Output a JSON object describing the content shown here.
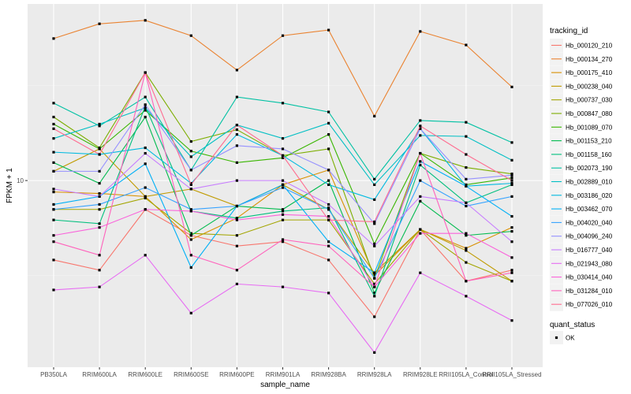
{
  "chart_data": {
    "type": "line",
    "xlabel": "sample_name",
    "ylabel": "FPKM + 1",
    "y_scale": "log10",
    "ylim": [
      2.56,
      36.3
    ],
    "y_ticks": [
      10
    ],
    "y_tick_labels": [
      "10"
    ],
    "grid": true,
    "legend_placement": "right",
    "categories": [
      "PB350LA",
      "RRIM600LA",
      "RRIM600LE",
      "RRIM600SE",
      "RRIM600PE",
      "RRIM901LA",
      "RRIM928BA",
      "RRIM928LA",
      "RRIM928LE",
      "RRII105LA_Control",
      "RRII105LA_Stressed"
    ],
    "legend_title": "tracking_id",
    "series": [
      {
        "name": "Hb_000120_210",
        "color": "#F8766D",
        "values": [
          5.6,
          5.2,
          8.1,
          6.7,
          6.2,
          6.4,
          5.6,
          3.7,
          7.0,
          4.8,
          5.2
        ]
      },
      {
        "name": "Hb_000134_270",
        "color": "#EA8331",
        "values": [
          28.2,
          31.4,
          32.2,
          28.8,
          22.4,
          28.8,
          30.0,
          16.0,
          29.7,
          26.9,
          19.8
        ]
      },
      {
        "name": "Hb_000175_410",
        "color": "#D89000",
        "values": [
          9.2,
          9.1,
          8.9,
          6.5,
          7.6,
          9.7,
          10.8,
          5.0,
          7.0,
          6.1,
          7.1
        ]
      },
      {
        "name": "Hb_000238_040",
        "color": "#C09B00",
        "values": [
          10.7,
          12.6,
          8.9,
          9.4,
          8.3,
          9.7,
          8.1,
          5.1,
          7.0,
          6.0,
          4.8
        ]
      },
      {
        "name": "Hb_000737_030",
        "color": "#A3A500",
        "values": [
          8.1,
          8.1,
          8.8,
          6.8,
          6.7,
          7.5,
          7.5,
          4.7,
          7.0,
          5.5,
          4.8
        ]
      },
      {
        "name": "Hb_000847_080",
        "color": "#7CAE00",
        "values": [
          15.9,
          12.7,
          22.0,
          13.3,
          14.5,
          12.0,
          12.6,
          4.9,
          12.2,
          11.0,
          10.5
        ]
      },
      {
        "name": "Hb_001089_070",
        "color": "#39B600",
        "values": [
          15.1,
          12.6,
          16.7,
          12.4,
          11.4,
          11.8,
          14.0,
          6.3,
          12.2,
          9.7,
          10.2
        ]
      },
      {
        "name": "Hb_001153_210",
        "color": "#00BB4E",
        "values": [
          11.4,
          9.8,
          15.9,
          6.7,
          8.3,
          8.1,
          10.0,
          4.4,
          8.6,
          6.7,
          6.9
        ]
      },
      {
        "name": "Hb_001158_160",
        "color": "#00BF7D",
        "values": [
          7.5,
          7.3,
          17.2,
          8.0,
          7.6,
          8.0,
          8.2,
          4.3,
          11.2,
          8.5,
          9.7
        ]
      },
      {
        "name": "Hb_002073_190",
        "color": "#00C1A3",
        "values": [
          17.6,
          14.9,
          18.4,
          10.8,
          18.4,
          17.6,
          16.5,
          10.1,
          15.5,
          15.3,
          13.2
        ]
      },
      {
        "name": "Hb_002889_010",
        "color": "#00BFC4",
        "values": [
          13.6,
          15.1,
          17.0,
          11.9,
          15.0,
          13.6,
          15.2,
          9.7,
          13.9,
          13.8,
          11.6
        ]
      },
      {
        "name": "Hb_003186_020",
        "color": "#00BAE0",
        "values": [
          12.3,
          12.1,
          12.7,
          9.8,
          14.0,
          12.0,
          9.7,
          8.7,
          14.6,
          9.6,
          9.8
        ]
      },
      {
        "name": "Hb_003462_070",
        "color": "#00B0F6",
        "values": [
          8.4,
          8.9,
          11.3,
          5.3,
          8.3,
          9.7,
          6.4,
          5.1,
          11.5,
          9.6,
          7.7
        ]
      },
      {
        "name": "Hb_004020_040",
        "color": "#35A2FF",
        "values": [
          8.1,
          8.4,
          9.5,
          8.1,
          8.3,
          9.5,
          8.1,
          4.9,
          10.0,
          8.3,
          8.9
        ]
      },
      {
        "name": "Hb_004096_240",
        "color": "#9590FF",
        "values": [
          10.7,
          10.7,
          17.4,
          10.8,
          12.9,
          12.6,
          10.8,
          7.3,
          14.6,
          10.1,
          10.4
        ]
      },
      {
        "name": "Hb_016777_040",
        "color": "#C77CFF",
        "values": [
          9.4,
          8.9,
          12.2,
          9.4,
          10.0,
          10.0,
          8.4,
          6.2,
          8.9,
          8.5,
          6.4
        ]
      },
      {
        "name": "Hb_021943_080",
        "color": "#E76BF3",
        "values": [
          4.5,
          4.6,
          5.8,
          3.8,
          4.7,
          4.6,
          4.4,
          2.85,
          5.1,
          4.3,
          3.6
        ]
      },
      {
        "name": "Hb_030414_040",
        "color": "#FA62DB",
        "values": [
          6.7,
          7.1,
          8.1,
          8.0,
          7.5,
          7.8,
          7.7,
          4.6,
          6.8,
          6.8,
          5.7
        ]
      },
      {
        "name": "Hb_031284_010",
        "color": "#FF62BC",
        "values": [
          6.4,
          5.8,
          22.0,
          5.8,
          5.2,
          6.5,
          6.2,
          4.6,
          12.2,
          4.8,
          5.1
        ]
      },
      {
        "name": "Hb_077026_010",
        "color": "#FF6C90",
        "values": [
          14.6,
          12.1,
          22.0,
          9.7,
          15.0,
          12.0,
          7.5,
          7.4,
          14.9,
          12.1,
          10.0
        ]
      }
    ],
    "shape_legend_title": "quant_status",
    "shape_legend_items": [
      "OK"
    ]
  }
}
